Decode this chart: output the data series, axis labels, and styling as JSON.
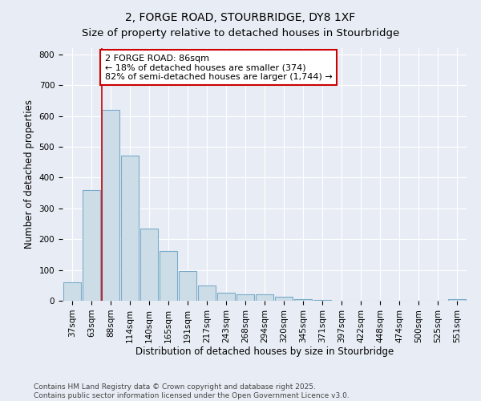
{
  "title": "2, FORGE ROAD, STOURBRIDGE, DY8 1XF",
  "subtitle": "Size of property relative to detached houses in Stourbridge",
  "xlabel": "Distribution of detached houses by size in Stourbridge",
  "ylabel": "Number of detached properties",
  "categories": [
    "37sqm",
    "63sqm",
    "88sqm",
    "114sqm",
    "140sqm",
    "165sqm",
    "191sqm",
    "217sqm",
    "243sqm",
    "268sqm",
    "294sqm",
    "320sqm",
    "345sqm",
    "371sqm",
    "397sqm",
    "422sqm",
    "448sqm",
    "474sqm",
    "500sqm",
    "525sqm",
    "551sqm"
  ],
  "values": [
    60,
    360,
    620,
    470,
    235,
    162,
    97,
    50,
    25,
    22,
    20,
    14,
    5,
    2,
    1,
    1,
    1,
    0,
    0,
    0,
    5
  ],
  "bar_color": "#ccdde8",
  "bar_edge_color": "#7aaac8",
  "vline_color": "#cc0000",
  "annotation_text": "2 FORGE ROAD: 86sqm\n← 18% of detached houses are smaller (374)\n82% of semi-detached houses are larger (1,744) →",
  "annotation_box_color": "#ffffff",
  "annotation_box_edge": "#cc0000",
  "ylim": [
    0,
    820
  ],
  "yticks": [
    0,
    100,
    200,
    300,
    400,
    500,
    600,
    700,
    800
  ],
  "background_color": "#e8edf5",
  "plot_bg_color": "#e8edf5",
  "footer": "Contains HM Land Registry data © Crown copyright and database right 2025.\nContains public sector information licensed under the Open Government Licence v3.0.",
  "title_fontsize": 10,
  "xlabel_fontsize": 8.5,
  "ylabel_fontsize": 8.5,
  "tick_fontsize": 7.5,
  "annot_fontsize": 8,
  "footer_fontsize": 6.5
}
